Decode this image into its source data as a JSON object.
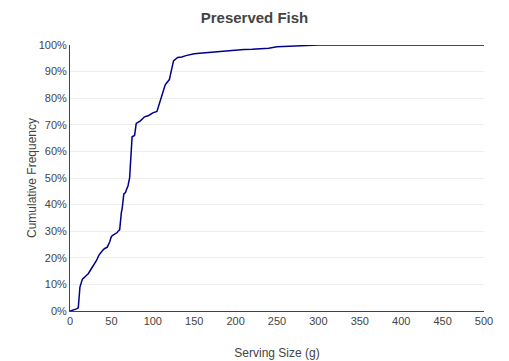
{
  "chart_data": {
    "type": "line",
    "title": "Preserved Fish",
    "xlabel": "Serving Size (g)",
    "ylabel": "Cumulative Frequency",
    "x": [
      0,
      3,
      5,
      8,
      10,
      12,
      15,
      18,
      20,
      22,
      25,
      28,
      30,
      32,
      35,
      38,
      40,
      42,
      45,
      48,
      50,
      52,
      55,
      57,
      58,
      60,
      62,
      63,
      65,
      67,
      68,
      70,
      72,
      75,
      78,
      80,
      85,
      90,
      95,
      100,
      105,
      110,
      115,
      120,
      125,
      130,
      135,
      140,
      150,
      160,
      170,
      180,
      200,
      210,
      220,
      240,
      250,
      260,
      280,
      290,
      300,
      350,
      400,
      450,
      500
    ],
    "values": [
      0.0,
      0.002,
      0.005,
      0.008,
      0.012,
      0.09,
      0.12,
      0.13,
      0.135,
      0.14,
      0.155,
      0.17,
      0.175,
      0.19,
      0.21,
      0.225,
      0.23,
      0.235,
      0.24,
      0.26,
      0.28,
      0.285,
      0.29,
      0.295,
      0.3,
      0.305,
      0.37,
      0.385,
      0.44,
      0.445,
      0.455,
      0.47,
      0.5,
      0.655,
      0.66,
      0.705,
      0.715,
      0.73,
      0.735,
      0.745,
      0.75,
      0.8,
      0.85,
      0.87,
      0.94,
      0.953,
      0.955,
      0.96,
      0.967,
      0.97,
      0.973,
      0.975,
      0.982,
      0.983,
      0.984,
      0.988,
      0.993,
      0.994,
      0.998,
      0.999,
      1.0,
      1.0,
      1.0,
      1.0,
      1.0
    ],
    "color": "#00008B",
    "xlim": [
      0,
      500
    ],
    "ylim": [
      0,
      1.0
    ],
    "xticks": [
      0,
      50,
      100,
      150,
      200,
      250,
      300,
      350,
      400,
      450,
      500
    ],
    "yticks": [
      {
        "value": 0.0,
        "label": "0%"
      },
      {
        "value": 0.1,
        "label": "10%"
      },
      {
        "value": 0.2,
        "label": "20%"
      },
      {
        "value": 0.3,
        "label": "30%"
      },
      {
        "value": 0.4,
        "label": "40%"
      },
      {
        "value": 0.5,
        "label": "50%"
      },
      {
        "value": 0.6,
        "label": "60%"
      },
      {
        "value": 0.7,
        "label": "70%"
      },
      {
        "value": 0.8,
        "label": "80%"
      },
      {
        "value": 0.9,
        "label": "90%"
      },
      {
        "value": 1.0,
        "label": "100%"
      }
    ],
    "grid": "y"
  }
}
